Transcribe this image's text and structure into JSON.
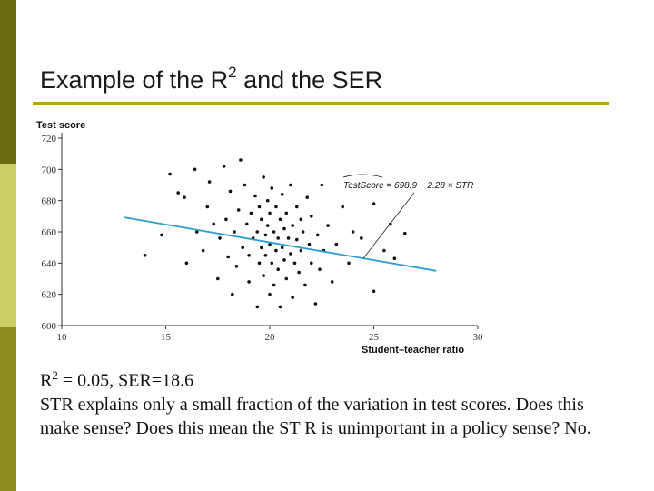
{
  "slide": {
    "title_prefix": "Example of the R",
    "title_sup": "2",
    "title_suffix": " and the SER",
    "colors": {
      "bar_top": "#6b6b10",
      "bar_mid": "#c9cf66",
      "bar_bottom": "#8c8f1c",
      "title_rule": "#b3a800",
      "regression_line": "#2a9fd0"
    }
  },
  "body": {
    "line1_prefix": "R",
    "line1_sup": "2",
    "line1_suffix": " = 0.05, SER=18.6",
    "paragraph": "STR explains only a small fraction of the variation in test scores. Does this make sense? Does this mean the ST R is unimportant in a policy sense? No."
  },
  "chart_data": {
    "type": "scatter",
    "ylabel": "Test score",
    "xlabel": "Student–teacher ratio",
    "xlim": [
      10,
      30
    ],
    "ylim": [
      600,
      720
    ],
    "xticks": [
      "10",
      "15",
      "20",
      "25",
      "30"
    ],
    "yticks": [
      "600",
      "620",
      "640",
      "660",
      "680",
      "700",
      "720"
    ],
    "annotation": "TestScore = 698.9 − 2.28 × STR",
    "regression": {
      "intercept": 698.9,
      "slope": -2.28,
      "x_range": [
        13,
        28
      ]
    },
    "points": [
      [
        14,
        645
      ],
      [
        14.8,
        658
      ],
      [
        15.2,
        697
      ],
      [
        15.6,
        685
      ],
      [
        15.9,
        682
      ],
      [
        16.0,
        640
      ],
      [
        16.4,
        700
      ],
      [
        16.5,
        660
      ],
      [
        16.8,
        648
      ],
      [
        17.0,
        676
      ],
      [
        17.1,
        692
      ],
      [
        17.3,
        665
      ],
      [
        17.5,
        630
      ],
      [
        17.6,
        656
      ],
      [
        17.8,
        702
      ],
      [
        17.9,
        668
      ],
      [
        18.0,
        644
      ],
      [
        18.1,
        686
      ],
      [
        18.2,
        620
      ],
      [
        18.3,
        660
      ],
      [
        18.4,
        638
      ],
      [
        18.5,
        674
      ],
      [
        18.6,
        706
      ],
      [
        18.7,
        650
      ],
      [
        18.8,
        690
      ],
      [
        18.9,
        665
      ],
      [
        19.0,
        628
      ],
      [
        19.0,
        645
      ],
      [
        19.1,
        672
      ],
      [
        19.2,
        656
      ],
      [
        19.3,
        683
      ],
      [
        19.4,
        612
      ],
      [
        19.4,
        660
      ],
      [
        19.5,
        640
      ],
      [
        19.5,
        676
      ],
      [
        19.6,
        650
      ],
      [
        19.6,
        668
      ],
      [
        19.7,
        632
      ],
      [
        19.7,
        695
      ],
      [
        19.8,
        658
      ],
      [
        19.8,
        645
      ],
      [
        19.9,
        680
      ],
      [
        19.9,
        664
      ],
      [
        20.0,
        620
      ],
      [
        20.0,
        652
      ],
      [
        20.0,
        672
      ],
      [
        20.1,
        640
      ],
      [
        20.1,
        688
      ],
      [
        20.2,
        660
      ],
      [
        20.2,
        626
      ],
      [
        20.3,
        648
      ],
      [
        20.3,
        676
      ],
      [
        20.4,
        656
      ],
      [
        20.4,
        636
      ],
      [
        20.5,
        668
      ],
      [
        20.5,
        612
      ],
      [
        20.6,
        650
      ],
      [
        20.6,
        684
      ],
      [
        20.7,
        642
      ],
      [
        20.7,
        662
      ],
      [
        20.8,
        630
      ],
      [
        20.8,
        672
      ],
      [
        20.9,
        656
      ],
      [
        21.0,
        646
      ],
      [
        21.0,
        690
      ],
      [
        21.1,
        664
      ],
      [
        21.1,
        618
      ],
      [
        21.2,
        640
      ],
      [
        21.3,
        676
      ],
      [
        21.3,
        655
      ],
      [
        21.4,
        634
      ],
      [
        21.5,
        668
      ],
      [
        21.5,
        648
      ],
      [
        21.6,
        660
      ],
      [
        21.7,
        626
      ],
      [
        21.8,
        682
      ],
      [
        21.9,
        652
      ],
      [
        22.0,
        640
      ],
      [
        22.0,
        670
      ],
      [
        22.2,
        614
      ],
      [
        22.3,
        658
      ],
      [
        22.4,
        636
      ],
      [
        22.5,
        690
      ],
      [
        22.6,
        648
      ],
      [
        22.8,
        664
      ],
      [
        23.0,
        628
      ],
      [
        23.2,
        652
      ],
      [
        23.5,
        676
      ],
      [
        23.8,
        640
      ],
      [
        24.0,
        660
      ],
      [
        24.4,
        656
      ],
      [
        25.0,
        678
      ],
      [
        25.0,
        622
      ],
      [
        25.5,
        648
      ],
      [
        25.8,
        665
      ],
      [
        26.0,
        643
      ],
      [
        26.5,
        659
      ]
    ]
  }
}
